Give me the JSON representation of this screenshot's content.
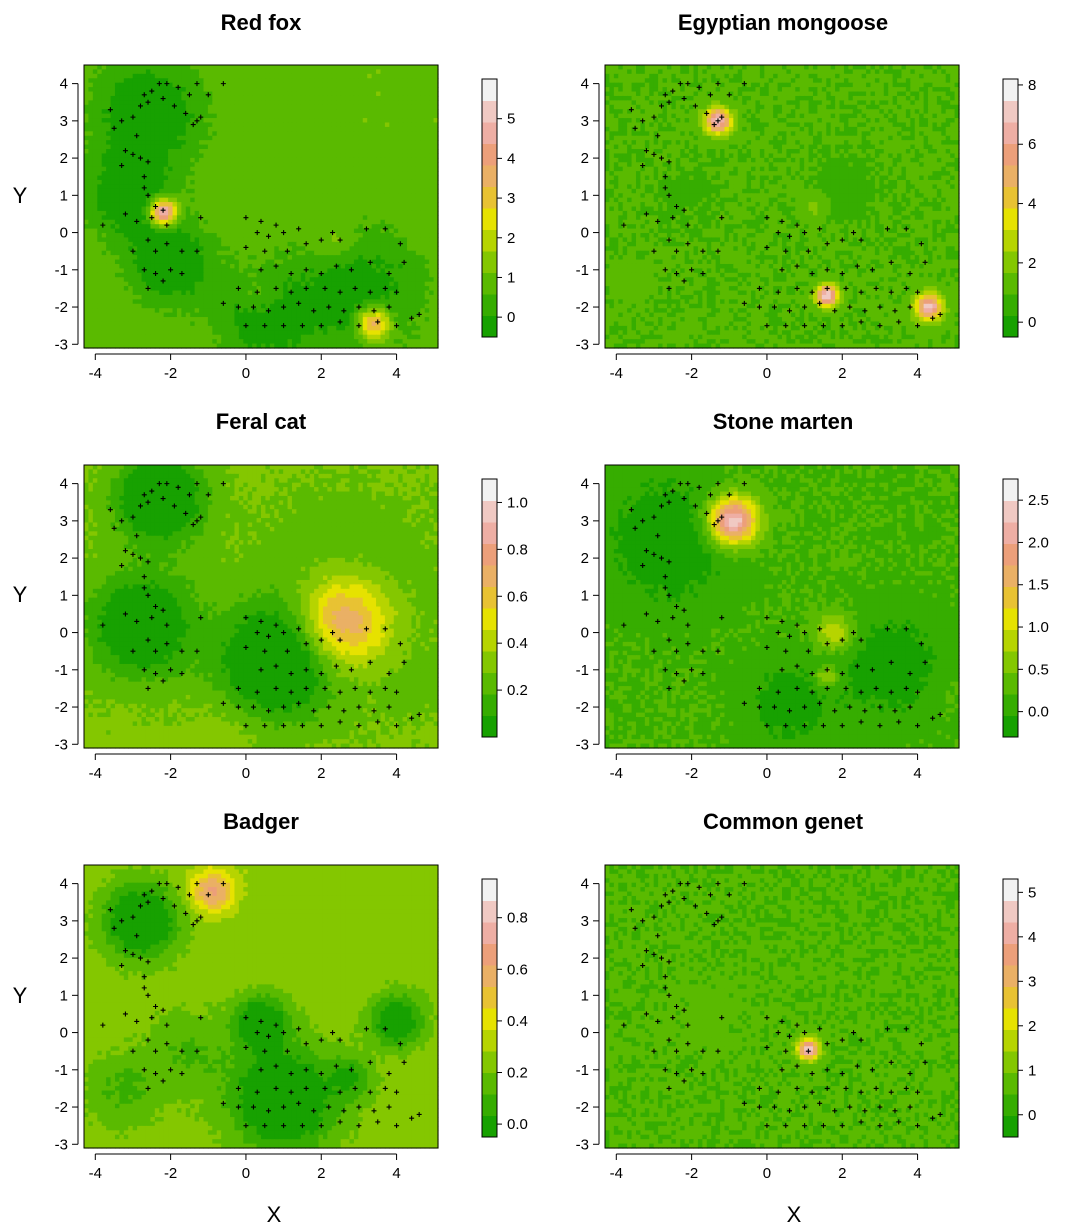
{
  "figure": {
    "xlabel": "X",
    "ylabel": "Y"
  },
  "chart_data": [
    {
      "type": "heatmap",
      "title": "Red fox",
      "xlim": [
        -4.3,
        5.1
      ],
      "ylim": [
        -3.1,
        4.5
      ],
      "xticks": [
        -4,
        -2,
        0,
        2,
        4
      ],
      "yticks": [
        -3,
        -2,
        -1,
        0,
        1,
        2,
        3,
        4
      ],
      "xlabel": "",
      "ylabel": "Y",
      "base": 1.0,
      "colorbar": {
        "min": -0.5,
        "max": 6.0,
        "ticks": [
          0,
          1,
          2,
          3,
          4,
          5
        ]
      },
      "hotspots": [
        {
          "x": -2.2,
          "y": 0.55,
          "peak": 5.9,
          "spread": 0.25
        },
        {
          "x": 3.4,
          "y": -2.45,
          "peak": 4.3,
          "spread": 0.3
        },
        {
          "x": 2.4,
          "y": -0.25,
          "peak": 1.8,
          "spread": 0.35
        },
        {
          "x": 0.4,
          "y": -1.7,
          "peak": 1.7,
          "spread": 0.4
        },
        {
          "x": 1.3,
          "y": 0.3,
          "peak": 0.9,
          "spread": 0.25
        },
        {
          "x": 3.6,
          "y": 0.5,
          "peak": 0.9,
          "spread": 0.25
        },
        {
          "x": 4.4,
          "y": -0.9,
          "peak": 0.7,
          "spread": 0.25
        },
        {
          "x": -2.6,
          "y": 3.2,
          "peak": -0.7,
          "spread": 1.0
        },
        {
          "x": -3.1,
          "y": 1.0,
          "peak": -0.5,
          "spread": 0.8
        },
        {
          "x": -2.0,
          "y": -0.8,
          "peak": -0.6,
          "spread": 0.8
        },
        {
          "x": 0.5,
          "y": -2.3,
          "peak": -0.4,
          "spread": 0.9
        },
        {
          "x": 3.0,
          "y": -1.6,
          "peak": -0.3,
          "spread": 1.2
        }
      ]
    },
    {
      "type": "heatmap",
      "title": "Egyptian mongoose",
      "xlim": [
        -4.3,
        5.1
      ],
      "ylim": [
        -3.1,
        4.5
      ],
      "xticks": [
        -4,
        -2,
        0,
        2,
        4
      ],
      "yticks": [
        -3,
        -2,
        -1,
        0,
        1,
        2,
        3,
        4
      ],
      "xlabel": "",
      "ylabel": "",
      "base": 1.0,
      "colorbar": {
        "min": -0.5,
        "max": 8.2,
        "ticks": [
          0,
          2,
          4,
          6,
          8
        ]
      },
      "hotspots": [
        {
          "x": -1.3,
          "y": 3.0,
          "peak": 7.0,
          "spread": 0.25
        },
        {
          "x": 1.6,
          "y": -1.7,
          "peak": 7.5,
          "spread": 0.2
        },
        {
          "x": 4.3,
          "y": -2.0,
          "peak": 7.0,
          "spread": 0.25
        },
        {
          "x": 1.3,
          "y": 0.7,
          "peak": 2.0,
          "spread": 0.25
        },
        {
          "x": -3.6,
          "y": -1.3,
          "peak": 1.4,
          "spread": 0.35
        },
        {
          "x": -3.9,
          "y": 1.8,
          "peak": 1.0,
          "spread": 0.35
        },
        {
          "x": -2.2,
          "y": 1.0,
          "peak": 0.7,
          "spread": 0.45
        },
        {
          "x": 2.0,
          "y": 1.1,
          "peak": 0.4,
          "spread": 0.5
        }
      ]
    },
    {
      "type": "heatmap",
      "title": "Feral cat",
      "xlim": [
        -4.3,
        5.1
      ],
      "ylim": [
        -3.1,
        4.5
      ],
      "xticks": [
        -4,
        -2,
        0,
        2,
        4
      ],
      "yticks": [
        -3,
        -2,
        -1,
        0,
        1,
        2,
        3,
        4
      ],
      "xlabel": "",
      "ylabel": "Y",
      "base": 0.3,
      "colorbar": {
        "min": 0.0,
        "max": 1.1,
        "ticks": [
          0.2,
          0.4,
          0.6,
          0.8,
          1.0
        ]
      },
      "hotspots": [
        {
          "x": 2.6,
          "y": 0.3,
          "peak": 0.85,
          "spread": 0.85
        },
        {
          "x": 2.6,
          "y": 0.8,
          "peak": 0.18,
          "spread": 1.9
        },
        {
          "x": -0.5,
          "y": -2.6,
          "peak": 0.35,
          "spread": 0.6
        },
        {
          "x": 4.4,
          "y": -1.5,
          "peak": 0.25,
          "spread": 0.5
        },
        {
          "x": -2.3,
          "y": 3.6,
          "peak": -0.15,
          "spread": 0.8
        },
        {
          "x": 0.8,
          "y": -0.8,
          "peak": -0.13,
          "spread": 1.0
        },
        {
          "x": -2.8,
          "y": 0.2,
          "peak": -0.08,
          "spread": 1.0
        }
      ]
    },
    {
      "type": "heatmap",
      "title": "Stone marten",
      "xlim": [
        -4.3,
        5.1
      ],
      "ylim": [
        -3.1,
        4.5
      ],
      "xticks": [
        -4,
        -2,
        0,
        2,
        4
      ],
      "yticks": [
        -3,
        -2,
        -1,
        0,
        1,
        2,
        3,
        4
      ],
      "xlabel": "",
      "ylabel": "",
      "base": 0.2,
      "colorbar": {
        "min": -0.3,
        "max": 2.75,
        "ticks": [
          0.0,
          0.5,
          1.0,
          1.5,
          2.0,
          2.5
        ]
      },
      "hotspots": [
        {
          "x": -0.9,
          "y": 3.0,
          "peak": 2.5,
          "spread": 0.45
        },
        {
          "x": 1.8,
          "y": 0.0,
          "peak": 1.0,
          "spread": 0.35
        },
        {
          "x": 1.6,
          "y": -1.2,
          "peak": 1.0,
          "spread": 0.2
        },
        {
          "x": 1.2,
          "y": 1.3,
          "peak": 0.2,
          "spread": 0.6
        },
        {
          "x": -2.6,
          "y": 2.5,
          "peak": -0.3,
          "spread": 1.2
        },
        {
          "x": 3.3,
          "y": -0.9,
          "peak": -0.25,
          "spread": 1.0
        },
        {
          "x": 0.6,
          "y": -1.9,
          "peak": -0.2,
          "spread": 0.8
        },
        {
          "x": 4.8,
          "y": -1.7,
          "peak": 0.3,
          "spread": 0.4
        }
      ]
    },
    {
      "type": "heatmap",
      "title": "Badger",
      "xlim": [
        -4.3,
        5.1
      ],
      "ylim": [
        -3.1,
        4.5
      ],
      "xticks": [
        -4,
        -2,
        0,
        2,
        4
      ],
      "yticks": [
        -3,
        -2,
        -1,
        0,
        1,
        2,
        3,
        4
      ],
      "xlabel": "X",
      "ylabel": "Y",
      "base": 0.25,
      "colorbar": {
        "min": -0.05,
        "max": 0.95,
        "ticks": [
          0.0,
          0.2,
          0.4,
          0.6,
          0.8
        ]
      },
      "hotspots": [
        {
          "x": -0.9,
          "y": 3.8,
          "peak": 0.65,
          "spread": 0.4
        },
        {
          "x": -1.6,
          "y": -0.5,
          "peak": 0.12,
          "spread": 0.8
        },
        {
          "x": -3.3,
          "y": -1.6,
          "peak": 0.1,
          "spread": 0.7
        },
        {
          "x": 2.8,
          "y": -1.2,
          "peak": 0.06,
          "spread": 0.4
        },
        {
          "x": -2.8,
          "y": 3.0,
          "peak": -0.15,
          "spread": 0.7
        },
        {
          "x": 1.0,
          "y": -1.8,
          "peak": -0.15,
          "spread": 1.0
        },
        {
          "x": 0.4,
          "y": 0.3,
          "peak": -0.1,
          "spread": 0.5
        },
        {
          "x": 4.0,
          "y": 0.3,
          "peak": -0.1,
          "spread": 0.5
        }
      ]
    },
    {
      "type": "heatmap",
      "title": "Common genet",
      "xlim": [
        -4.3,
        5.1
      ],
      "ylim": [
        -3.1,
        4.5
      ],
      "xticks": [
        -4,
        -2,
        0,
        2,
        4
      ],
      "yticks": [
        -3,
        -2,
        -1,
        0,
        1,
        2,
        3,
        4
      ],
      "xlabel": "X",
      "ylabel": "",
      "base": 0.5,
      "colorbar": {
        "min": -0.5,
        "max": 5.3,
        "ticks": [
          0,
          1,
          2,
          3,
          4,
          5
        ]
      },
      "hotspots": [
        {
          "x": 1.1,
          "y": -0.45,
          "peak": 4.7,
          "spread": 0.2
        },
        {
          "x": -1.6,
          "y": 0.5,
          "peak": 0.6,
          "spread": 0.8
        }
      ]
    }
  ],
  "points": [
    [
      -2.7,
      3.7
    ],
    [
      -2.5,
      3.8
    ],
    [
      -2.3,
      4.0
    ],
    [
      -2.1,
      4.0
    ],
    [
      -1.8,
      3.9
    ],
    [
      -1.5,
      3.7
    ],
    [
      -1.3,
      4.0
    ],
    [
      -1.0,
      3.7
    ],
    [
      -0.6,
      4.0
    ],
    [
      -2.8,
      3.4
    ],
    [
      -2.6,
      3.5
    ],
    [
      -2.2,
      3.6
    ],
    [
      -1.9,
      3.4
    ],
    [
      -1.6,
      3.2
    ],
    [
      -1.3,
      3.0
    ],
    [
      -1.2,
      3.1
    ],
    [
      -1.4,
      2.9
    ],
    [
      -3.6,
      3.3
    ],
    [
      -3.3,
      3.0
    ],
    [
      -3.0,
      3.1
    ],
    [
      -3.5,
      2.8
    ],
    [
      -2.9,
      2.6
    ],
    [
      -3.2,
      2.2
    ],
    [
      -3.0,
      2.1
    ],
    [
      -2.8,
      2.0
    ],
    [
      -2.6,
      1.9
    ],
    [
      -3.3,
      1.8
    ],
    [
      -2.7,
      1.5
    ],
    [
      -2.7,
      1.2
    ],
    [
      -2.6,
      1.0
    ],
    [
      -3.8,
      0.2
    ],
    [
      -3.2,
      0.5
    ],
    [
      -2.9,
      0.3
    ],
    [
      -2.5,
      0.4
    ],
    [
      -2.4,
      0.7
    ],
    [
      -2.2,
      0.6
    ],
    [
      -2.1,
      0.2
    ],
    [
      -1.2,
      0.4
    ],
    [
      -3.0,
      -0.5
    ],
    [
      -2.6,
      -0.2
    ],
    [
      -2.4,
      -0.5
    ],
    [
      -2.1,
      -0.3
    ],
    [
      -1.7,
      -0.5
    ],
    [
      -1.3,
      -0.5
    ],
    [
      -2.7,
      -1.0
    ],
    [
      -2.4,
      -1.1
    ],
    [
      -2.0,
      -1.0
    ],
    [
      -1.7,
      -1.1
    ],
    [
      -2.6,
      -1.5
    ],
    [
      -2.2,
      -1.3
    ],
    [
      0.0,
      0.4
    ],
    [
      0.4,
      0.3
    ],
    [
      0.8,
      0.2
    ],
    [
      0.3,
      0.0
    ],
    [
      0.6,
      -0.1
    ],
    [
      1.0,
      0.0
    ],
    [
      1.4,
      0.1
    ],
    [
      2.3,
      0.0
    ],
    [
      0.0,
      -0.4
    ],
    [
      0.5,
      -0.5
    ],
    [
      1.1,
      -0.5
    ],
    [
      1.6,
      -0.3
    ],
    [
      2.0,
      -0.2
    ],
    [
      2.5,
      -0.2
    ],
    [
      3.2,
      0.1
    ],
    [
      3.7,
      0.1
    ],
    [
      4.1,
      -0.3
    ],
    [
      0.4,
      -1.0
    ],
    [
      0.8,
      -0.9
    ],
    [
      1.2,
      -1.1
    ],
    [
      1.6,
      -1.0
    ],
    [
      2.0,
      -1.1
    ],
    [
      2.4,
      -0.9
    ],
    [
      2.8,
      -1.0
    ],
    [
      3.3,
      -0.8
    ],
    [
      3.8,
      -1.1
    ],
    [
      4.2,
      -0.8
    ],
    [
      -0.2,
      -1.5
    ],
    [
      0.3,
      -1.6
    ],
    [
      0.8,
      -1.5
    ],
    [
      1.2,
      -1.6
    ],
    [
      1.6,
      -1.5
    ],
    [
      2.1,
      -1.5
    ],
    [
      2.5,
      -1.6
    ],
    [
      2.9,
      -1.5
    ],
    [
      3.3,
      -1.6
    ],
    [
      3.7,
      -1.5
    ],
    [
      4.0,
      -1.6
    ],
    [
      -0.6,
      -1.9
    ],
    [
      -0.2,
      -2.0
    ],
    [
      0.2,
      -2.0
    ],
    [
      0.6,
      -2.1
    ],
    [
      1.0,
      -2.0
    ],
    [
      1.4,
      -1.9
    ],
    [
      1.8,
      -2.1
    ],
    [
      2.2,
      -2.0
    ],
    [
      2.6,
      -2.1
    ],
    [
      3.0,
      -2.0
    ],
    [
      3.4,
      -2.1
    ],
    [
      3.8,
      -2.0
    ],
    [
      0.0,
      -2.5
    ],
    [
      0.5,
      -2.5
    ],
    [
      1.0,
      -2.5
    ],
    [
      1.5,
      -2.5
    ],
    [
      2.0,
      -2.5
    ],
    [
      2.5,
      -2.4
    ],
    [
      3.0,
      -2.5
    ],
    [
      3.5,
      -2.4
    ],
    [
      4.0,
      -2.5
    ],
    [
      4.6,
      -2.2
    ],
    [
      4.4,
      -2.3
    ]
  ]
}
